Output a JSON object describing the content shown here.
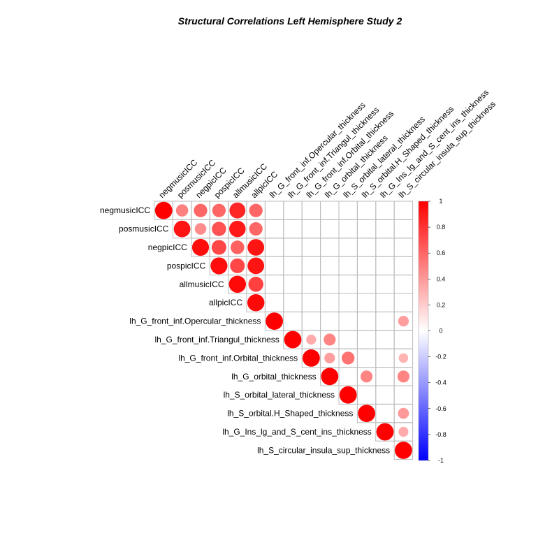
{
  "chart_data": {
    "type": "heatmap",
    "subtype": "correlation-matrix-upper",
    "title": "Structural Correlations Left Hemisphere Study 2",
    "variables": [
      "negmusicICC",
      "posmusicICC",
      "negpicICC",
      "pospicICC",
      "allmusicICC",
      "allpicICC",
      "lh_G_front_inf.Opercular_thickness",
      "lh_G_front_inf.Triangul_thickness",
      "lh_G_front_inf.Orbital_thickness",
      "lh_G_orbital_thickness",
      "lh_S_orbital_lateral_thickness",
      "lh_S_orbital.H_Shaped_thickness",
      "lh_G_Ins_lg_and_S_cent_ins_thickness",
      "lh_S_circular_insula_sup_thickness"
    ],
    "values": [
      {
        "row": 0,
        "col": 0,
        "r": 1.0
      },
      {
        "row": 0,
        "col": 1,
        "r": 0.5
      },
      {
        "row": 0,
        "col": 2,
        "r": 0.6
      },
      {
        "row": 0,
        "col": 3,
        "r": 0.6
      },
      {
        "row": 0,
        "col": 4,
        "r": 0.85
      },
      {
        "row": 0,
        "col": 5,
        "r": 0.6
      },
      {
        "row": 1,
        "col": 1,
        "r": 0.92
      },
      {
        "row": 1,
        "col": 2,
        "r": 0.45
      },
      {
        "row": 1,
        "col": 3,
        "r": 0.68
      },
      {
        "row": 1,
        "col": 4,
        "r": 0.9
      },
      {
        "row": 1,
        "col": 5,
        "r": 0.6
      },
      {
        "row": 2,
        "col": 2,
        "r": 0.95
      },
      {
        "row": 2,
        "col": 3,
        "r": 0.72
      },
      {
        "row": 2,
        "col": 4,
        "r": 0.62
      },
      {
        "row": 2,
        "col": 5,
        "r": 0.92
      },
      {
        "row": 3,
        "col": 3,
        "r": 0.95
      },
      {
        "row": 3,
        "col": 4,
        "r": 0.72
      },
      {
        "row": 3,
        "col": 5,
        "r": 0.92
      },
      {
        "row": 4,
        "col": 4,
        "r": 0.97
      },
      {
        "row": 4,
        "col": 5,
        "r": 0.75
      },
      {
        "row": 5,
        "col": 5,
        "r": 0.97
      },
      {
        "row": 6,
        "col": 6,
        "r": 1.0
      },
      {
        "row": 6,
        "col": 13,
        "r": 0.38
      },
      {
        "row": 7,
        "col": 7,
        "r": 1.0
      },
      {
        "row": 7,
        "col": 8,
        "r": 0.33
      },
      {
        "row": 7,
        "col": 9,
        "r": 0.48
      },
      {
        "row": 8,
        "col": 8,
        "r": 1.0
      },
      {
        "row": 8,
        "col": 9,
        "r": 0.38
      },
      {
        "row": 8,
        "col": 10,
        "r": 0.55
      },
      {
        "row": 8,
        "col": 13,
        "r": 0.3
      },
      {
        "row": 9,
        "col": 9,
        "r": 1.0
      },
      {
        "row": 9,
        "col": 11,
        "r": 0.48
      },
      {
        "row": 9,
        "col": 13,
        "r": 0.48
      },
      {
        "row": 10,
        "col": 10,
        "r": 1.0
      },
      {
        "row": 11,
        "col": 11,
        "r": 1.0
      },
      {
        "row": 11,
        "col": 13,
        "r": 0.4
      },
      {
        "row": 12,
        "col": 12,
        "r": 1.0
      },
      {
        "row": 12,
        "col": 13,
        "r": 0.33
      },
      {
        "row": 13,
        "col": 13,
        "r": 1.0
      }
    ],
    "legend": {
      "position": "right",
      "range": [
        -1,
        1
      ],
      "ticks": [
        "1",
        "0.8",
        "0.6",
        "0.4",
        "0.2",
        "0",
        "-0.2",
        "-0.4",
        "-0.6",
        "-0.8",
        "-1"
      ],
      "colors": {
        "negative": "#0000ff",
        "zero": "#ffffff",
        "positive": "#ff0000"
      }
    },
    "grid": true
  },
  "style": {
    "grid_color": "#bbbbbb",
    "positive_color": "#ff0000",
    "negative_color": "#0000ff"
  }
}
